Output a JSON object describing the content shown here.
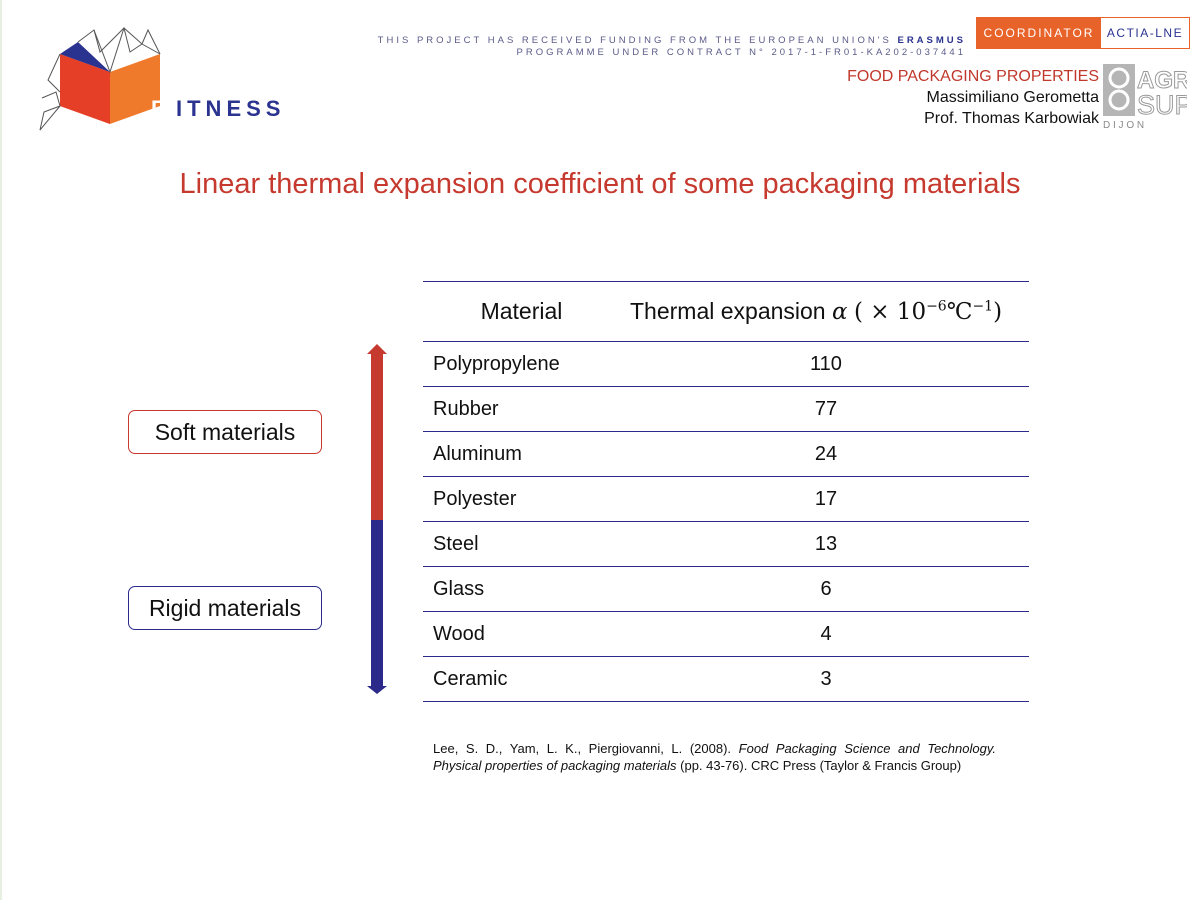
{
  "logo": {
    "letter_f": "F",
    "text": "ITNESS"
  },
  "funding": {
    "line1_prefix": "THIS PROJECT HAS RECEIVED FUNDING FROM THE EUROPEAN UNION'S",
    "line1_bold": "ERASMUS",
    "line2": "PROGRAMME UNDER CONTRACT N° 2017-1-FR01-KA202-037441"
  },
  "coordinator": {
    "label": "COORDINATOR",
    "name": "ACTIA-LNE"
  },
  "course": {
    "title": "FOOD PACKAGING PROPERTIES",
    "author1": "Massimiliano Gerometta",
    "author2": "Prof. Thomas Karbowiak"
  },
  "partner_logo": {
    "line1": "AGRO",
    "line2": "SUP",
    "line3": "D I J O N"
  },
  "slide": {
    "title": "Linear thermal expansion coefficient of some packaging materials"
  },
  "categories": {
    "soft": "Soft materials",
    "rigid": "Rigid materials"
  },
  "table": {
    "header": {
      "material": "Material",
      "expansion_text": "Thermal expansion",
      "expansion_symbol": "α",
      "expansion_unit_open": "( × 10",
      "expansion_exp": "−6",
      "expansion_unit_mid": "℃",
      "expansion_unit_exp": "−1",
      "expansion_unit_close": ")"
    },
    "rows": [
      {
        "material": "Polypropylene",
        "value": "110"
      },
      {
        "material": "Rubber",
        "value": "77"
      },
      {
        "material": "Aluminum",
        "value": "24"
      },
      {
        "material": "Polyester",
        "value": "17"
      },
      {
        "material": "Steel",
        "value": "13"
      },
      {
        "material": "Glass",
        "value": "6"
      },
      {
        "material": "Wood",
        "value": "4"
      },
      {
        "material": "Ceramic",
        "value": "3"
      }
    ]
  },
  "reference": {
    "authors": "Lee, S. D., Yam, L. K., Piergiovanni, L. (2008).",
    "book": "Food Packaging Science and Technology.",
    "chapter": "Physical properties of packaging materials",
    "rest": "(pp. 43-76). CRC Press (Taylor & Francis Group)"
  },
  "colors": {
    "red": "#c6392e",
    "navy": "#2b2a8a",
    "orange": "#e8632a"
  }
}
